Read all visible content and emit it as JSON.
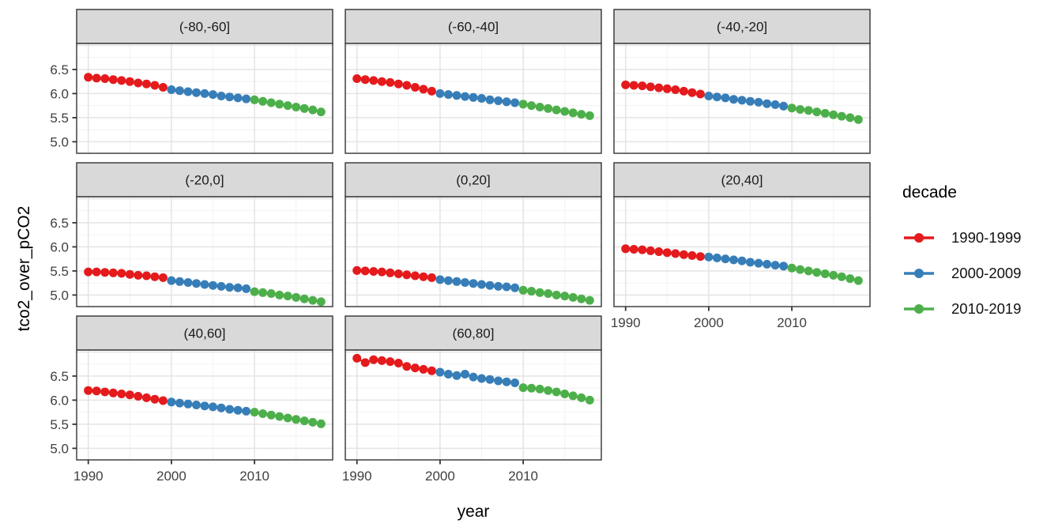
{
  "figure": {
    "background": "#FFFFFF",
    "y_axis_title": "tco2_over_pCO2",
    "x_axis_title": "year"
  },
  "legend": {
    "title": "decade",
    "entries": [
      {
        "label": "1990-1999",
        "color": "#E41A1C"
      },
      {
        "label": "2000-2009",
        "color": "#377EB8"
      },
      {
        "label": "2010-2019",
        "color": "#4DAF4A"
      }
    ]
  },
  "chart_data": {
    "type": "scatter",
    "title": "",
    "xlabel": "year",
    "ylabel": "tco2_over_pCO2",
    "facet_variable": "latitude band",
    "legend_title": "decade",
    "legend_position": "right",
    "grid": true,
    "x_ticks": [
      1990,
      2000,
      2010
    ],
    "y_ticks": [
      5.0,
      5.5,
      6.0,
      6.5
    ],
    "xlim": [
      1988.6,
      2019.4
    ],
    "ylim": [
      4.76,
      7.04
    ],
    "x": [
      1990,
      1991,
      1992,
      1993,
      1994,
      1995,
      1996,
      1997,
      1998,
      1999,
      2000,
      2001,
      2002,
      2003,
      2004,
      2005,
      2006,
      2007,
      2008,
      2009,
      2010,
      2011,
      2012,
      2013,
      2014,
      2015,
      2016,
      2017,
      2018
    ],
    "decades": [
      {
        "name": "1990-1999",
        "color": "#E41A1C",
        "year_range": [
          1990,
          1999
        ]
      },
      {
        "name": "2000-2009",
        "color": "#377EB8",
        "year_range": [
          2000,
          2009
        ]
      },
      {
        "name": "2010-2019",
        "color": "#4DAF4A",
        "year_range": [
          2010,
          2018
        ]
      }
    ],
    "series": [
      {
        "facet": "(-80,-60]",
        "values": [
          6.34,
          6.32,
          6.31,
          6.29,
          6.27,
          6.25,
          6.22,
          6.2,
          6.17,
          6.13,
          6.08,
          6.06,
          6.04,
          6.02,
          6.0,
          5.98,
          5.95,
          5.93,
          5.91,
          5.89,
          5.87,
          5.84,
          5.81,
          5.78,
          5.75,
          5.72,
          5.69,
          5.66,
          5.62
        ]
      },
      {
        "facet": "(-60,-40]",
        "values": [
          6.31,
          6.29,
          6.27,
          6.25,
          6.23,
          6.2,
          6.17,
          6.13,
          6.09,
          6.05,
          6.0,
          5.98,
          5.96,
          5.94,
          5.92,
          5.9,
          5.87,
          5.85,
          5.83,
          5.81,
          5.78,
          5.75,
          5.72,
          5.69,
          5.66,
          5.63,
          5.6,
          5.57,
          5.54
        ]
      },
      {
        "facet": "(-40,-20]",
        "values": [
          6.18,
          6.17,
          6.16,
          6.14,
          6.12,
          6.1,
          6.08,
          6.05,
          6.02,
          5.99,
          5.95,
          5.93,
          5.91,
          5.88,
          5.86,
          5.84,
          5.82,
          5.79,
          5.77,
          5.74,
          5.7,
          5.67,
          5.65,
          5.62,
          5.59,
          5.56,
          5.53,
          5.5,
          5.46
        ]
      },
      {
        "facet": "(-20,0]",
        "values": [
          5.48,
          5.48,
          5.47,
          5.46,
          5.45,
          5.43,
          5.41,
          5.4,
          5.38,
          5.36,
          5.3,
          5.28,
          5.26,
          5.24,
          5.22,
          5.2,
          5.18,
          5.16,
          5.15,
          5.13,
          5.07,
          5.05,
          5.03,
          5.0,
          4.98,
          4.95,
          4.92,
          4.89,
          4.86
        ]
      },
      {
        "facet": "(0,20]",
        "values": [
          5.51,
          5.5,
          5.49,
          5.48,
          5.46,
          5.44,
          5.42,
          5.4,
          5.38,
          5.36,
          5.32,
          5.3,
          5.28,
          5.26,
          5.24,
          5.22,
          5.2,
          5.18,
          5.17,
          5.15,
          5.1,
          5.08,
          5.05,
          5.03,
          5.0,
          4.98,
          4.95,
          4.92,
          4.89
        ]
      },
      {
        "facet": "(20,40]",
        "values": [
          5.96,
          5.95,
          5.94,
          5.92,
          5.9,
          5.88,
          5.86,
          5.84,
          5.82,
          5.8,
          5.79,
          5.77,
          5.75,
          5.73,
          5.71,
          5.68,
          5.66,
          5.64,
          5.62,
          5.6,
          5.56,
          5.53,
          5.5,
          5.47,
          5.44,
          5.41,
          5.38,
          5.34,
          5.3
        ]
      },
      {
        "facet": "(40,60]",
        "values": [
          6.2,
          6.19,
          6.17,
          6.15,
          6.13,
          6.11,
          6.08,
          6.05,
          6.02,
          5.99,
          5.96,
          5.94,
          5.92,
          5.9,
          5.88,
          5.86,
          5.84,
          5.81,
          5.79,
          5.77,
          5.75,
          5.72,
          5.69,
          5.66,
          5.63,
          5.6,
          5.57,
          5.54,
          5.51
        ]
      },
      {
        "facet": "(60,80]",
        "values": [
          6.87,
          6.78,
          6.84,
          6.82,
          6.8,
          6.77,
          6.7,
          6.67,
          6.64,
          6.61,
          6.58,
          6.54,
          6.51,
          6.54,
          6.48,
          6.45,
          6.43,
          6.4,
          6.38,
          6.36,
          6.26,
          6.25,
          6.23,
          6.2,
          6.17,
          6.13,
          6.09,
          6.05,
          6.0
        ]
      }
    ]
  }
}
